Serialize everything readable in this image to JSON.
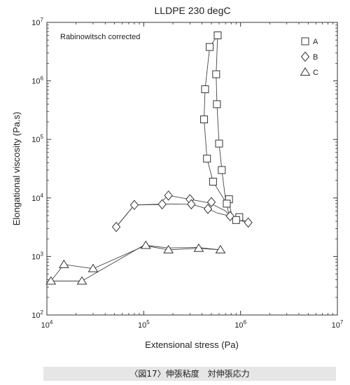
{
  "caption": "〈図17〉伸張粘度　対伸張応力",
  "chart_data": {
    "type": "scatter",
    "title": "LLDPE 230 degC",
    "annotation": "Rabinowitsch corrected",
    "xlabel": "Extensional stress (Pa)",
    "ylabel": "Elongational viscosity (Pa.s)",
    "xscale": "log",
    "yscale": "log",
    "xlim": [
      10000,
      10000000
    ],
    "ylim": [
      100,
      10000000
    ],
    "x_ticks": [
      {
        "value": 10000,
        "base": "10",
        "exp": "4"
      },
      {
        "value": 100000,
        "base": "10",
        "exp": "5"
      },
      {
        "value": 1000000,
        "base": "10",
        "exp": "6"
      },
      {
        "value": 10000000,
        "base": "10",
        "exp": "7"
      }
    ],
    "y_ticks": [
      {
        "value": 100,
        "base": "10",
        "exp": "2"
      },
      {
        "value": 1000,
        "base": "10",
        "exp": "3"
      },
      {
        "value": 10000,
        "base": "10",
        "exp": "4"
      },
      {
        "value": 100000,
        "base": "10",
        "exp": "5"
      },
      {
        "value": 1000000,
        "base": "10",
        "exp": "6"
      },
      {
        "value": 10000000,
        "base": "10",
        "exp": "7"
      }
    ],
    "legend_position": "top-right",
    "series": [
      {
        "name": "A",
        "marker": "square",
        "lines": [
          [
            [
              820000,
              4800
            ],
            [
              760000,
              8000
            ],
            [
              700000,
              9500
            ],
            [
              640000,
              30000
            ],
            [
              600000,
              85000
            ],
            [
              570000,
              400000
            ],
            [
              560000,
              1300000
            ],
            [
              580000,
              6000000
            ]
          ],
          [
            [
              820000,
              4800
            ],
            [
              970000,
              4700
            ],
            [
              900000,
              4200
            ],
            [
              760000,
              5000
            ],
            [
              720000,
              8000
            ],
            [
              520000,
              19000
            ],
            [
              450000,
              47000
            ],
            [
              420000,
              220000
            ],
            [
              430000,
              720000
            ],
            [
              480000,
              3800000
            ],
            [
              580000,
              6000000
            ]
          ]
        ],
        "points": [
          [
            580000,
            6000000
          ],
          [
            480000,
            3800000
          ],
          [
            560000,
            1300000
          ],
          [
            430000,
            720000
          ],
          [
            570000,
            400000
          ],
          [
            420000,
            220000
          ],
          [
            600000,
            85000
          ],
          [
            450000,
            47000
          ],
          [
            640000,
            30000
          ],
          [
            520000,
            19000
          ],
          [
            760000,
            9500
          ],
          [
            720000,
            8000
          ],
          [
            970000,
            4700
          ],
          [
            900000,
            4200
          ]
        ]
      },
      {
        "name": "B",
        "marker": "diamond",
        "lines": [
          [
            [
              52000,
              3200
            ],
            [
              80000,
              7600
            ],
            [
              140000,
              7700
            ],
            [
              180000,
              11000
            ],
            [
              300000,
              9500
            ],
            [
              480000,
              8200
            ],
            [
              700000,
              6000
            ],
            [
              780000,
              4800
            ],
            [
              1200000,
              3700
            ]
          ],
          [
            [
              52000,
              3200
            ],
            [
              80000,
              7600
            ],
            [
              160000,
              7900
            ],
            [
              310000,
              7800
            ],
            [
              460000,
              6500
            ],
            [
              580000,
              5500
            ],
            [
              780000,
              4900
            ],
            [
              1200000,
              3900
            ]
          ]
        ],
        "points": [
          [
            52000,
            3200
          ],
          [
            80000,
            7600
          ],
          [
            155000,
            7800
          ],
          [
            180000,
            11000
          ],
          [
            300000,
            9500
          ],
          [
            310000,
            7800
          ],
          [
            460000,
            6500
          ],
          [
            500000,
            8500
          ],
          [
            780000,
            4900
          ],
          [
            1200000,
            3800
          ]
        ]
      },
      {
        "name": "C",
        "marker": "triangle",
        "lines": [
          [
            [
              11000,
              380
            ],
            [
              15000,
              730
            ],
            [
              30000,
              620
            ],
            [
              105000,
              1550
            ],
            [
              180000,
              1400
            ],
            [
              360000,
              1430
            ],
            [
              620000,
              1300
            ]
          ],
          [
            [
              11000,
              380
            ],
            [
              23000,
              380
            ],
            [
              100000,
              1550
            ],
            [
              180000,
              1300
            ],
            [
              370000,
              1380
            ],
            [
              620000,
              1300
            ]
          ]
        ],
        "points": [
          [
            11000,
            380
          ],
          [
            15000,
            730
          ],
          [
            23000,
            380
          ],
          [
            30000,
            620
          ],
          [
            105000,
            1550
          ],
          [
            180000,
            1300
          ],
          [
            370000,
            1380
          ],
          [
            620000,
            1300
          ]
        ]
      }
    ]
  }
}
